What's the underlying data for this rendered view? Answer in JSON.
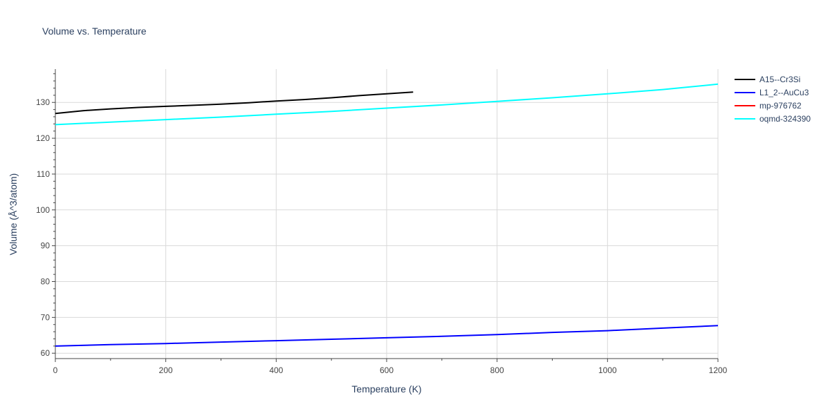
{
  "chart_data": {
    "type": "line",
    "title": "Volume vs. Temperature",
    "xlabel": "Temperature (K)",
    "ylabel": "Volume (Å^3/atom)",
    "xlim": [
      0,
      1200
    ],
    "ylim": [
      58.5,
      139.3
    ],
    "xticks": [
      0,
      200,
      400,
      600,
      800,
      1000,
      1200
    ],
    "yticks": [
      60,
      70,
      80,
      90,
      100,
      110,
      120,
      130
    ],
    "grid": true,
    "legend_position": "top-right",
    "series": [
      {
        "name": "A15--Cr3Si",
        "color": "#000000",
        "x": [
          0,
          50,
          100,
          150,
          200,
          250,
          300,
          350,
          400,
          450,
          500,
          550,
          600,
          648
        ],
        "y": [
          126.9,
          127.7,
          128.2,
          128.6,
          128.9,
          129.2,
          129.5,
          129.9,
          130.4,
          130.8,
          131.3,
          131.9,
          132.4,
          132.9
        ]
      },
      {
        "name": "L1_2--AuCu3",
        "color": "#0000ff",
        "x": [
          0,
          100,
          200,
          300,
          400,
          500,
          600,
          700,
          800,
          900,
          1000,
          1100,
          1200
        ],
        "y": [
          62.0,
          62.4,
          62.7,
          63.1,
          63.5,
          63.9,
          64.3,
          64.7,
          65.2,
          65.8,
          66.3,
          67.0,
          67.7
        ]
      },
      {
        "name": "mp-976762",
        "color": "#ff0000",
        "x": [],
        "y": []
      },
      {
        "name": "oqmd-324390",
        "color": "#00ffff",
        "x": [
          0,
          100,
          200,
          300,
          400,
          500,
          600,
          700,
          800,
          900,
          1000,
          1100,
          1200
        ],
        "y": [
          123.8,
          124.5,
          125.2,
          125.9,
          126.7,
          127.5,
          128.4,
          129.3,
          130.3,
          131.3,
          132.4,
          133.6,
          135.1
        ]
      }
    ]
  }
}
